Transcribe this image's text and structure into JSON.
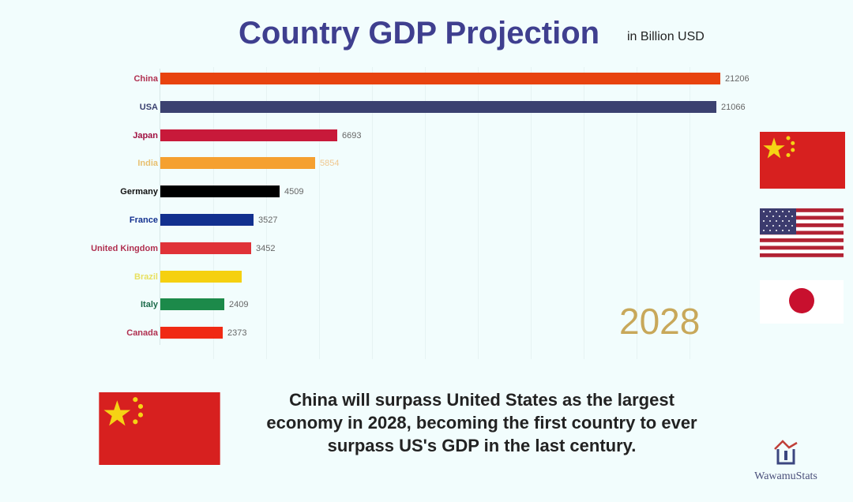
{
  "header": {
    "title": "Country GDP Projection",
    "unit": "in Billion USD"
  },
  "year": "2028",
  "caption": {
    "line1": "China will surpass United States as the largest",
    "line2": "economy in 2028, becoming the first country to ever",
    "line3": "surpass US's GDP in the last century."
  },
  "logo": {
    "text": "WawamuStats"
  },
  "flags": {
    "side": [
      "china-flag",
      "usa-flag",
      "japan-flag"
    ],
    "featured": "china-flag"
  },
  "colors": {
    "China": "#e8430f",
    "USA": "#3b4170",
    "Japan": "#c8193a",
    "India": "#f5a030",
    "Germany": "#000000",
    "France": "#12308f",
    "United Kingdom": "#e03238",
    "Brazil": "#f5d010",
    "Italy": "#1c8a4a",
    "Canada": "#f02a14"
  },
  "chart_data": {
    "type": "bar",
    "orientation": "horizontal",
    "title": "Country GDP Projection",
    "subtitle": "in Billion USD",
    "annotation": "2028",
    "categories": [
      "China",
      "USA",
      "Japan",
      "India",
      "Germany",
      "France",
      "United Kingdom",
      "Brazil",
      "Italy",
      "Canada"
    ],
    "values": [
      21206,
      21066,
      6693,
      5854,
      4509,
      3527,
      3452,
      3083,
      2409,
      2373
    ],
    "value_labels": [
      "21206",
      "21066",
      "6693",
      "5854",
      "4509",
      "3527",
      "3452",
      "",
      "2409",
      "2373"
    ],
    "xlabel": "",
    "ylabel": "",
    "xlim": [
      0,
      21206
    ],
    "grid": true,
    "legend": "none"
  }
}
